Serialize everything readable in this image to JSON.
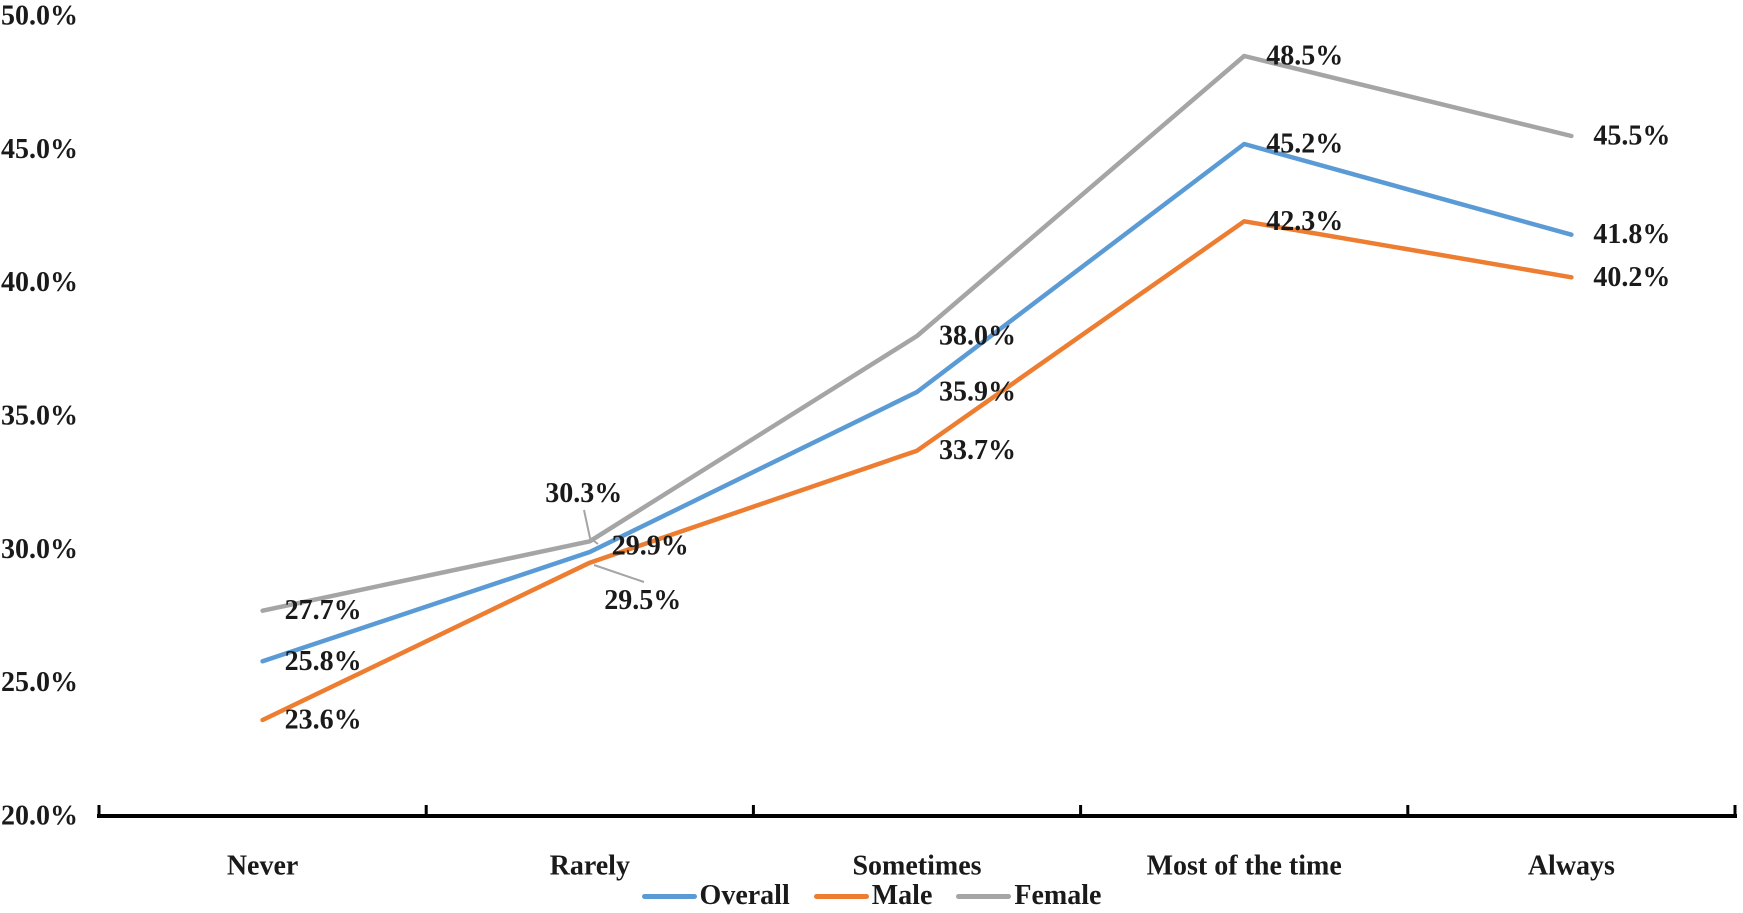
{
  "chart_data": {
    "type": "line",
    "title": "",
    "categories": [
      "Never",
      "Rarely",
      "Sometimes",
      "Most of the time",
      "Always"
    ],
    "series": [
      {
        "name": "Overall",
        "color": "#5B9BD5",
        "values": [
          25.8,
          29.9,
          35.9,
          45.2,
          41.8
        ],
        "point_labels": [
          "25.8%",
          "29.9%",
          "35.9%",
          "45.2%",
          "41.8%"
        ]
      },
      {
        "name": "Male",
        "color": "#ED7D31",
        "values": [
          23.6,
          29.5,
          33.7,
          42.3,
          40.2
        ],
        "point_labels": [
          "23.6%",
          "29.5%",
          "33.7%",
          "42.3%",
          "40.2%"
        ]
      },
      {
        "name": "Female",
        "color": "#A5A5A5",
        "values": [
          27.7,
          30.3,
          38.0,
          48.5,
          45.5
        ],
        "point_labels": [
          "27.7%",
          "30.3%",
          "38.0%",
          "48.5%",
          "45.5%"
        ]
      }
    ],
    "x_axis": {
      "tick_labels": [
        "Never",
        "Rarely",
        "Sometimes",
        "Most of the time",
        "Always"
      ]
    },
    "y_axis": {
      "min": 20,
      "max": 50,
      "step": 5,
      "tick_labels": [
        "20.0%",
        "25.0%",
        "30.0%",
        "35.0%",
        "40.0%",
        "45.0%",
        "50.0%"
      ]
    },
    "legend": {
      "position": "bottom",
      "entries": [
        "Overall",
        "Male",
        "Female"
      ]
    },
    "grid": false,
    "label_format": "percent_one_decimal"
  },
  "colors": {
    "axis": "#000000",
    "label_text": "#1a1a1a",
    "leader_line": "#A5A5A5",
    "background": "#FFFFFF"
  }
}
